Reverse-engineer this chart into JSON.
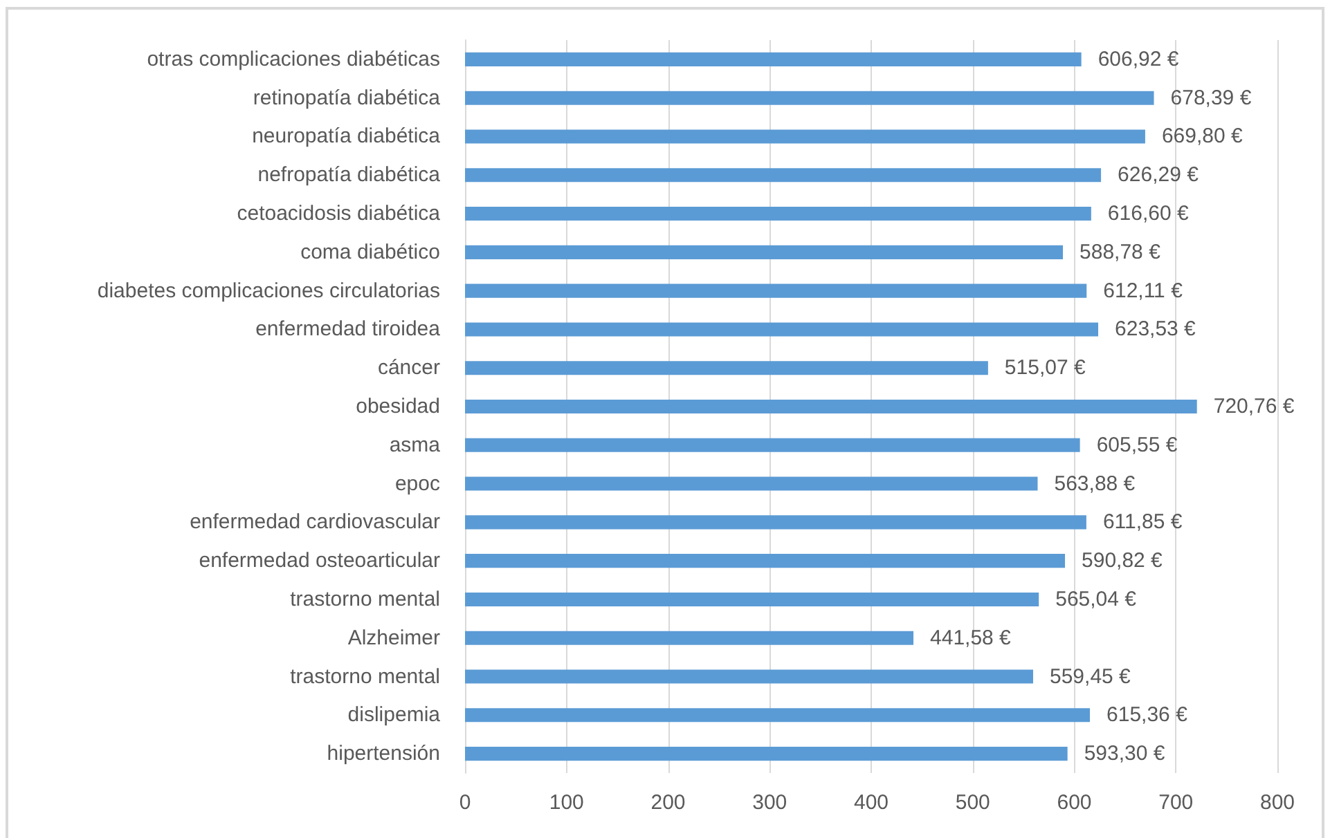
{
  "chart_data": {
    "type": "bar",
    "orientation": "horizontal",
    "categories": [
      "otras complicaciones diabéticas",
      "retinopatía diabética",
      "neuropatía diabética",
      "nefropatía diabética",
      "cetoacidosis diabética",
      "coma diabético",
      "diabetes complicaciones circulatorias",
      "enfermedad tiroidea",
      "cáncer",
      "obesidad",
      "asma",
      "epoc",
      "enfermedad cardiovascular",
      "enfermedad osteoarticular",
      "trastorno mental",
      "Alzheimer",
      "trastorno mental",
      "dislipemia",
      "hipertensión"
    ],
    "values": [
      606.92,
      678.39,
      669.8,
      626.29,
      616.6,
      588.78,
      612.11,
      623.53,
      515.07,
      720.76,
      605.55,
      563.88,
      611.85,
      590.82,
      565.04,
      441.58,
      559.45,
      615.36,
      593.3
    ],
    "value_labels": [
      "606,92 €",
      "678,39 €",
      "669,80 €",
      "626,29 €",
      "616,60 €",
      "588,78 €",
      "612,11 €",
      "623,53 €",
      "515,07 €",
      "720,76 €",
      "605,55 €",
      "563,88 €",
      "611,85 €",
      "590,82 €",
      "565,04 €",
      "441,58 €",
      "559,45 €",
      "615,36 €",
      "593,30 €"
    ],
    "color": "#5b9bd5",
    "xlim": [
      0,
      800
    ],
    "xticks": [
      0,
      100,
      200,
      300,
      400,
      500,
      600,
      700,
      800
    ],
    "grid": "x"
  }
}
